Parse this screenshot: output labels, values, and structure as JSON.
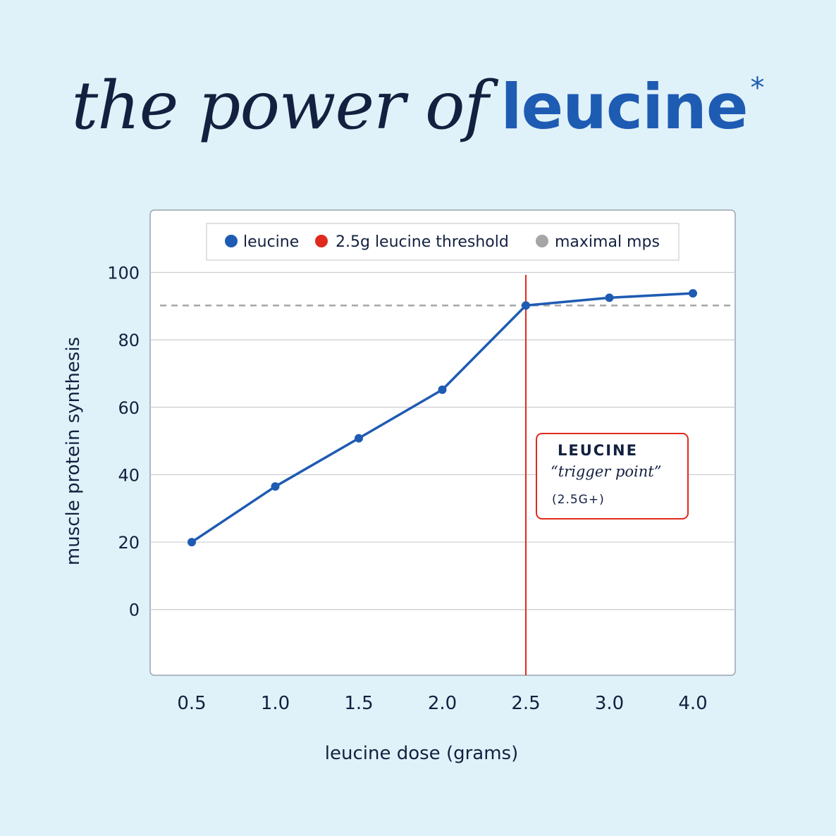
{
  "headline": {
    "prefix": "the power of",
    "emphasis": "leucine",
    "asterisk": "*"
  },
  "colors": {
    "background": "#e0f2f9",
    "leucine": "#1e5bb3",
    "threshold": "#e02a1d",
    "maximal": "#a6a6a6",
    "text": "#13203f"
  },
  "chart_data": {
    "type": "line",
    "categories": [
      "0.5",
      "1.0",
      "1.5",
      "2.0",
      "2.5",
      "3.0",
      "4.0"
    ],
    "series": [
      {
        "name": "leucine",
        "values": [
          20,
          36.5,
          50.8,
          65.2,
          90.2,
          92.5,
          93.8
        ]
      }
    ],
    "threshold": {
      "name": "2.5g leucine threshold",
      "category": "2.5"
    },
    "maximal": {
      "name": "maximal mps",
      "value": 90.2
    },
    "legend": [
      "leucine",
      "2.5g leucine threshold",
      "maximal mps"
    ],
    "legend_position": "top",
    "xlabel": "leucine dose (grams)",
    "ylabel": "muscle protein synthesis",
    "yticks": [
      0,
      20,
      40,
      60,
      80,
      100
    ],
    "ylim": [
      -19.5,
      118.5
    ],
    "grid": true,
    "annotation": {
      "title": "LEUCINE",
      "subtitle": "“trigger point”",
      "dose": "(2.5G+)"
    }
  }
}
